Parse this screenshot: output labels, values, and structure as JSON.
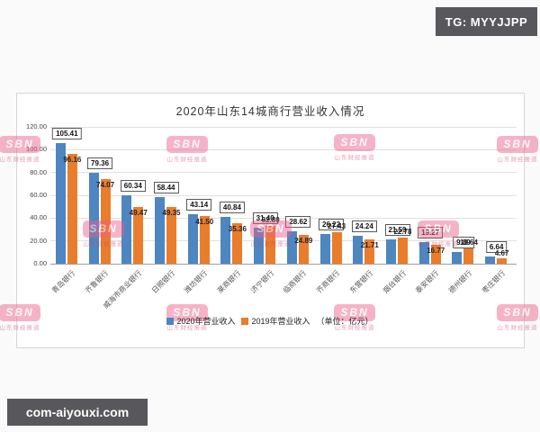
{
  "badges": {
    "top_right": {
      "label": "TG: MYYJJPP",
      "bg": "#58585c",
      "fg": "#ffffff"
    },
    "bottom_left": {
      "label": "com-aiyouxi.com",
      "bg": "#58585c",
      "fg": "#ffffff"
    }
  },
  "watermark": {
    "logo_text": "SBN",
    "caption": "山东财经报道",
    "color": "#e75480"
  },
  "chart": {
    "title": "2020年山东14城商行营业收入情况",
    "unit_note": "（单位：亿元）",
    "y_axis_ticks": [
      "0.00",
      "20.00",
      "40.00",
      "60.00",
      "80.00",
      "100.00",
      "120.00"
    ]
  },
  "chart_data": {
    "type": "bar",
    "title": "2020年山东14城商行营业收入情况",
    "unit": "亿元",
    "categories": [
      "青岛银行",
      "齐鲁银行",
      "威海市商业银行",
      "日照银行",
      "潍坊银行",
      "莱商银行",
      "济宁银行",
      "临商银行",
      "齐商银行",
      "东营银行",
      "烟台银行",
      "泰安银行",
      "德州银行",
      "枣庄银行"
    ],
    "series": [
      {
        "name": "2020年营业收入",
        "color": "#4d86c0",
        "label_style": "boxed",
        "values": [
          105.41,
          79.36,
          60.34,
          58.44,
          43.14,
          40.84,
          31.4,
          28.62,
          26.22,
          24.24,
          21.59,
          19.27,
          9.89,
          6.64
        ]
      },
      {
        "name": "2019年营业收入",
        "color": "#e97d2c",
        "label_style": "plain",
        "values": [
          96.16,
          74.07,
          49.47,
          49.35,
          41.5,
          35.36,
          32.8,
          24.89,
          27.43,
          21.71,
          22.78,
          16.77,
          13.64,
          4.67
        ]
      }
    ],
    "ylim": [
      0,
      120
    ],
    "ytick_step": 20,
    "grid": true,
    "legend_position": "bottom"
  }
}
